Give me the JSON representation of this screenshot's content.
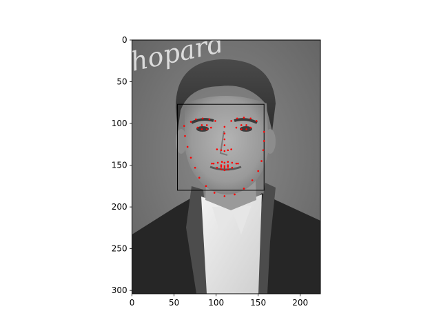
{
  "chart_data": {
    "type": "scatter",
    "title": "",
    "xlabel": "",
    "ylabel": "",
    "xlim": [
      0,
      224
    ],
    "ylim": [
      304,
      0
    ],
    "y_inverted": true,
    "background": "grayscale photograph: portrait of a man in a dark suit jacket and white shirt, partial logo text in the upper-left corner",
    "logo_text": "hopard",
    "x_ticks": [
      "0",
      "50",
      "100",
      "150",
      "200"
    ],
    "y_ticks": [
      "0",
      "50",
      "100",
      "150",
      "200",
      "250",
      "300"
    ],
    "bounding_box": {
      "x0": 54,
      "y0": 77,
      "x1": 157,
      "y1": 180,
      "color": "#000000"
    },
    "series": [
      {
        "marker_color": "#ff0000",
        "points": [
          [
            62,
            103
          ],
          [
            63,
            115
          ],
          [
            66,
            128
          ],
          [
            70,
            141
          ],
          [
            75,
            153
          ],
          [
            80,
            165
          ],
          [
            88,
            175
          ],
          [
            98,
            183
          ],
          [
            110,
            187
          ],
          [
            122,
            185
          ],
          [
            133,
            178
          ],
          [
            143,
            168
          ],
          [
            150,
            157
          ],
          [
            154,
            145
          ],
          [
            156,
            132
          ],
          [
            157,
            121
          ],
          [
            157,
            110
          ],
          [
            70,
            98
          ],
          [
            76,
            95
          ],
          [
            84,
            94
          ],
          [
            92,
            95
          ],
          [
            99,
            97
          ],
          [
            118,
            97
          ],
          [
            125,
            94
          ],
          [
            133,
            93
          ],
          [
            141,
            94
          ],
          [
            148,
            97
          ],
          [
            110,
            104
          ],
          [
            110,
            112
          ],
          [
            110,
            119
          ],
          [
            110,
            126
          ],
          [
            101,
            131
          ],
          [
            106,
            132
          ],
          [
            110,
            133
          ],
          [
            114,
            132
          ],
          [
            118,
            131
          ],
          [
            78,
            105
          ],
          [
            83,
            102
          ],
          [
            89,
            102
          ],
          [
            94,
            105
          ],
          [
            89,
            107
          ],
          [
            83,
            107
          ],
          [
            124,
            105
          ],
          [
            130,
            102
          ],
          [
            136,
            102
          ],
          [
            141,
            105
          ],
          [
            136,
            107
          ],
          [
            130,
            107
          ],
          [
            95,
            148
          ],
          [
            102,
            147
          ],
          [
            107,
            146
          ],
          [
            110,
            147
          ],
          [
            114,
            146
          ],
          [
            119,
            147
          ],
          [
            126,
            148
          ],
          [
            119,
            153
          ],
          [
            114,
            155
          ],
          [
            110,
            156
          ],
          [
            106,
            155
          ],
          [
            101,
            153
          ],
          [
            97,
            148
          ],
          [
            106,
            150
          ],
          [
            110,
            151
          ],
          [
            114,
            150
          ],
          [
            124,
            148
          ],
          [
            114,
            152
          ],
          [
            110,
            153
          ],
          [
            106,
            152
          ]
        ]
      }
    ]
  }
}
